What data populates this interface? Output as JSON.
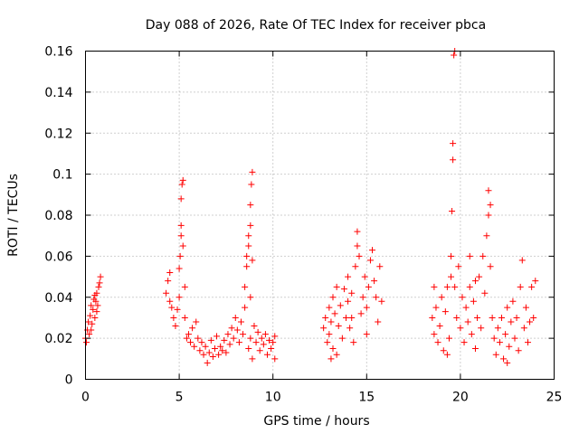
{
  "chart_data": {
    "type": "scatter",
    "title": "Day 088 of 2026, Rate Of TEC Index for receiver pbca",
    "xlabel": "GPS time / hours",
    "ylabel": "ROTI / TECUs",
    "xlim": [
      0,
      25
    ],
    "ylim": [
      0,
      0.16
    ],
    "x_ticks": [
      0,
      5,
      10,
      15,
      20,
      25
    ],
    "x_tick_labels": [
      "0",
      "5",
      "10",
      "15",
      "20",
      "25"
    ],
    "y_ticks": [
      0,
      0.02,
      0.04,
      0.06,
      0.08,
      0.1,
      0.12,
      0.14,
      0.16
    ],
    "y_tick_labels": [
      "0",
      "0.02",
      "0.04",
      "0.06",
      "0.08",
      "0.1",
      "0.12",
      "0.14",
      "0.16"
    ],
    "grid": true,
    "marker": "plus",
    "color": "#ff0000",
    "series": [
      {
        "name": "ROTI",
        "points": [
          [
            0.0,
            0.02
          ],
          [
            0.05,
            0.018
          ],
          [
            0.1,
            0.024
          ],
          [
            0.15,
            0.028
          ],
          [
            0.2,
            0.022
          ],
          [
            0.25,
            0.031
          ],
          [
            0.3,
            0.036
          ],
          [
            0.35,
            0.027
          ],
          [
            0.4,
            0.034
          ],
          [
            0.45,
            0.039
          ],
          [
            0.5,
            0.03
          ],
          [
            0.55,
            0.038
          ],
          [
            0.6,
            0.042
          ],
          [
            0.65,
            0.036
          ],
          [
            0.7,
            0.045
          ],
          [
            0.75,
            0.047
          ],
          [
            0.8,
            0.05
          ],
          [
            0.3,
            0.024
          ],
          [
            0.5,
            0.041
          ],
          [
            0.6,
            0.033
          ],
          [
            4.3,
            0.042
          ],
          [
            4.4,
            0.048
          ],
          [
            4.5,
            0.052
          ],
          [
            4.5,
            0.038
          ],
          [
            4.6,
            0.035
          ],
          [
            4.7,
            0.03
          ],
          [
            4.8,
            0.026
          ],
          [
            4.9,
            0.034
          ],
          [
            5.0,
            0.04
          ],
          [
            5.0,
            0.054
          ],
          [
            5.05,
            0.06
          ],
          [
            5.1,
            0.075
          ],
          [
            5.1,
            0.088
          ],
          [
            5.15,
            0.095
          ],
          [
            5.2,
            0.097
          ],
          [
            5.1,
            0.07
          ],
          [
            5.2,
            0.065
          ],
          [
            5.3,
            0.045
          ],
          [
            5.3,
            0.03
          ],
          [
            5.4,
            0.02
          ],
          [
            5.5,
            0.022
          ],
          [
            5.6,
            0.018
          ],
          [
            5.7,
            0.025
          ],
          [
            5.8,
            0.016
          ],
          [
            5.9,
            0.028
          ],
          [
            6.0,
            0.02
          ],
          [
            6.1,
            0.014
          ],
          [
            6.2,
            0.018
          ],
          [
            6.3,
            0.012
          ],
          [
            6.4,
            0.016
          ],
          [
            6.5,
            0.008
          ],
          [
            6.6,
            0.013
          ],
          [
            6.7,
            0.019
          ],
          [
            6.8,
            0.011
          ],
          [
            6.9,
            0.015
          ],
          [
            7.0,
            0.021
          ],
          [
            7.1,
            0.012
          ],
          [
            7.2,
            0.016
          ],
          [
            7.3,
            0.014
          ],
          [
            7.4,
            0.019
          ],
          [
            7.5,
            0.013
          ],
          [
            7.6,
            0.022
          ],
          [
            7.7,
            0.017
          ],
          [
            7.8,
            0.025
          ],
          [
            7.9,
            0.02
          ],
          [
            8.0,
            0.03
          ],
          [
            8.1,
            0.024
          ],
          [
            8.2,
            0.018
          ],
          [
            8.3,
            0.028
          ],
          [
            8.4,
            0.022
          ],
          [
            8.5,
            0.035
          ],
          [
            8.5,
            0.045
          ],
          [
            8.6,
            0.055
          ],
          [
            8.6,
            0.06
          ],
          [
            8.7,
            0.065
          ],
          [
            8.7,
            0.07
          ],
          [
            8.8,
            0.075
          ],
          [
            8.8,
            0.085
          ],
          [
            8.85,
            0.095
          ],
          [
            8.9,
            0.101
          ],
          [
            8.9,
            0.058
          ],
          [
            8.8,
            0.04
          ],
          [
            8.7,
            0.015
          ],
          [
            8.8,
            0.02
          ],
          [
            8.9,
            0.01
          ],
          [
            9.0,
            0.026
          ],
          [
            9.1,
            0.018
          ],
          [
            9.2,
            0.023
          ],
          [
            9.3,
            0.014
          ],
          [
            9.4,
            0.02
          ],
          [
            9.5,
            0.017
          ],
          [
            9.6,
            0.022
          ],
          [
            9.7,
            0.012
          ],
          [
            9.8,
            0.019
          ],
          [
            9.9,
            0.015
          ],
          [
            10.0,
            0.018
          ],
          [
            10.1,
            0.021
          ],
          [
            10.1,
            0.01
          ],
          [
            12.7,
            0.025
          ],
          [
            12.8,
            0.03
          ],
          [
            12.9,
            0.018
          ],
          [
            13.0,
            0.035
          ],
          [
            13.0,
            0.022
          ],
          [
            13.1,
            0.028
          ],
          [
            13.2,
            0.04
          ],
          [
            13.2,
            0.015
          ],
          [
            13.3,
            0.032
          ],
          [
            13.4,
            0.012
          ],
          [
            13.5,
            0.026
          ],
          [
            13.6,
            0.036
          ],
          [
            13.7,
            0.02
          ],
          [
            13.8,
            0.044
          ],
          [
            13.9,
            0.03
          ],
          [
            14.0,
            0.05
          ],
          [
            14.0,
            0.038
          ],
          [
            14.1,
            0.025
          ],
          [
            14.2,
            0.042
          ],
          [
            14.3,
            0.018
          ],
          [
            14.4,
            0.055
          ],
          [
            14.5,
            0.065
          ],
          [
            14.5,
            0.072
          ],
          [
            14.6,
            0.06
          ],
          [
            14.7,
            0.032
          ],
          [
            14.8,
            0.04
          ],
          [
            14.9,
            0.05
          ],
          [
            15.0,
            0.035
          ],
          [
            15.1,
            0.045
          ],
          [
            15.2,
            0.058
          ],
          [
            15.3,
            0.063
          ],
          [
            15.4,
            0.048
          ],
          [
            15.5,
            0.04
          ],
          [
            15.6,
            0.028
          ],
          [
            15.7,
            0.055
          ],
          [
            15.8,
            0.038
          ],
          [
            13.1,
            0.01
          ],
          [
            13.4,
            0.045
          ],
          [
            14.2,
            0.03
          ],
          [
            15.0,
            0.022
          ],
          [
            18.5,
            0.03
          ],
          [
            18.6,
            0.022
          ],
          [
            18.7,
            0.035
          ],
          [
            18.8,
            0.018
          ],
          [
            18.9,
            0.026
          ],
          [
            19.0,
            0.04
          ],
          [
            19.1,
            0.014
          ],
          [
            19.2,
            0.033
          ],
          [
            19.3,
            0.045
          ],
          [
            19.4,
            0.02
          ],
          [
            19.5,
            0.05
          ],
          [
            19.5,
            0.06
          ],
          [
            19.55,
            0.082
          ],
          [
            19.6,
            0.107
          ],
          [
            19.6,
            0.115
          ],
          [
            19.65,
            0.158
          ],
          [
            19.7,
            0.16
          ],
          [
            19.7,
            0.045
          ],
          [
            19.8,
            0.03
          ],
          [
            19.9,
            0.055
          ],
          [
            20.0,
            0.025
          ],
          [
            20.1,
            0.04
          ],
          [
            20.2,
            0.018
          ],
          [
            20.3,
            0.035
          ],
          [
            20.4,
            0.028
          ],
          [
            20.5,
            0.045
          ],
          [
            20.6,
            0.022
          ],
          [
            20.7,
            0.038
          ],
          [
            20.8,
            0.015
          ],
          [
            20.9,
            0.03
          ],
          [
            21.0,
            0.05
          ],
          [
            21.1,
            0.025
          ],
          [
            21.2,
            0.06
          ],
          [
            21.3,
            0.042
          ],
          [
            21.4,
            0.07
          ],
          [
            21.5,
            0.08
          ],
          [
            21.5,
            0.092
          ],
          [
            21.6,
            0.085
          ],
          [
            21.6,
            0.055
          ],
          [
            21.7,
            0.03
          ],
          [
            21.8,
            0.02
          ],
          [
            21.9,
            0.012
          ],
          [
            22.0,
            0.025
          ],
          [
            22.1,
            0.018
          ],
          [
            22.2,
            0.03
          ],
          [
            22.3,
            0.01
          ],
          [
            22.4,
            0.022
          ],
          [
            22.5,
            0.035
          ],
          [
            22.6,
            0.016
          ],
          [
            22.7,
            0.028
          ],
          [
            22.8,
            0.038
          ],
          [
            22.9,
            0.02
          ],
          [
            23.0,
            0.03
          ],
          [
            23.1,
            0.014
          ],
          [
            23.2,
            0.045
          ],
          [
            23.3,
            0.058
          ],
          [
            23.4,
            0.025
          ],
          [
            23.5,
            0.035
          ],
          [
            23.6,
            0.018
          ],
          [
            23.7,
            0.028
          ],
          [
            23.8,
            0.045
          ],
          [
            23.9,
            0.03
          ],
          [
            24.0,
            0.048
          ],
          [
            20.5,
            0.06
          ],
          [
            20.8,
            0.048
          ],
          [
            22.5,
            0.008
          ],
          [
            19.3,
            0.012
          ],
          [
            18.6,
            0.045
          ]
        ]
      }
    ]
  }
}
